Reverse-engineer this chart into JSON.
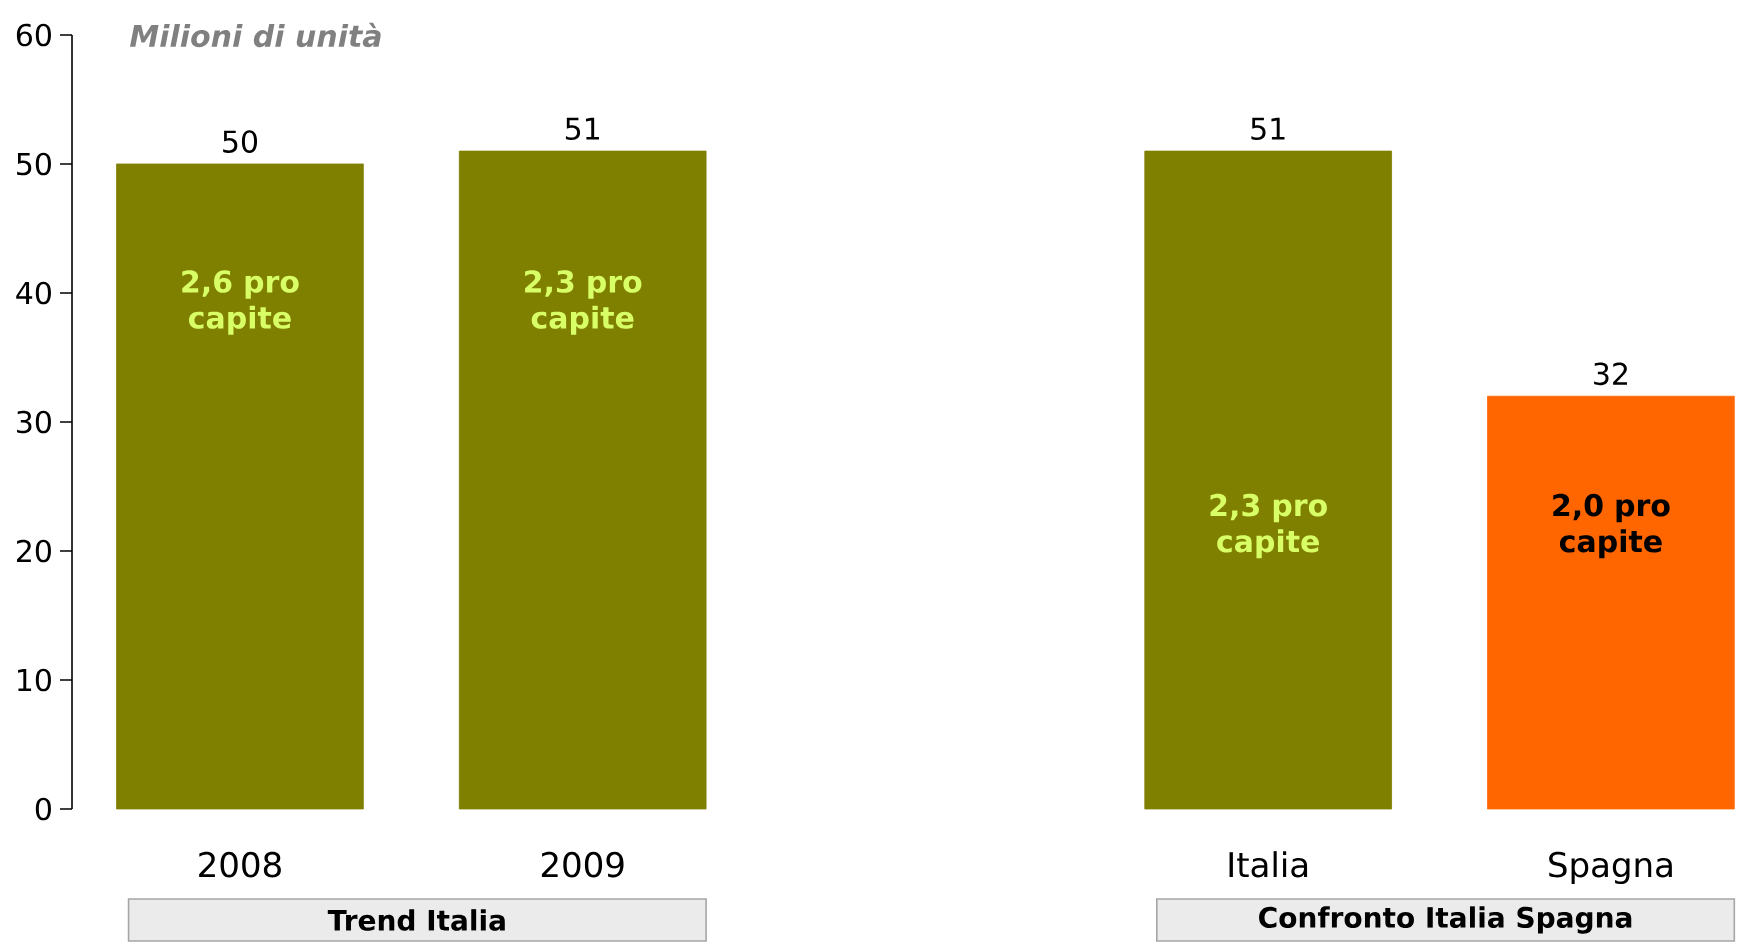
{
  "chart_data": {
    "type": "bar",
    "ylabel": "Milioni di unità",
    "categories": [
      "2008",
      "2009",
      null,
      "Italia",
      "Spagna"
    ],
    "values": [
      50,
      51,
      null,
      51,
      32
    ],
    "colors": [
      "#7f7f00",
      "#7f7f00",
      null,
      "#7f7f00",
      "#ff6600"
    ],
    "ylim": [
      0,
      60
    ],
    "yticks": [
      0,
      10,
      20,
      30,
      40,
      50,
      60
    ],
    "data_labels": true,
    "annotations": [
      "2,6 pro capite",
      "2,3 pro capite",
      "2,3 pro capite",
      "2,0 pro capite",
      "Trend Italia",
      "Confronto Italia Spagna"
    ]
  }
}
